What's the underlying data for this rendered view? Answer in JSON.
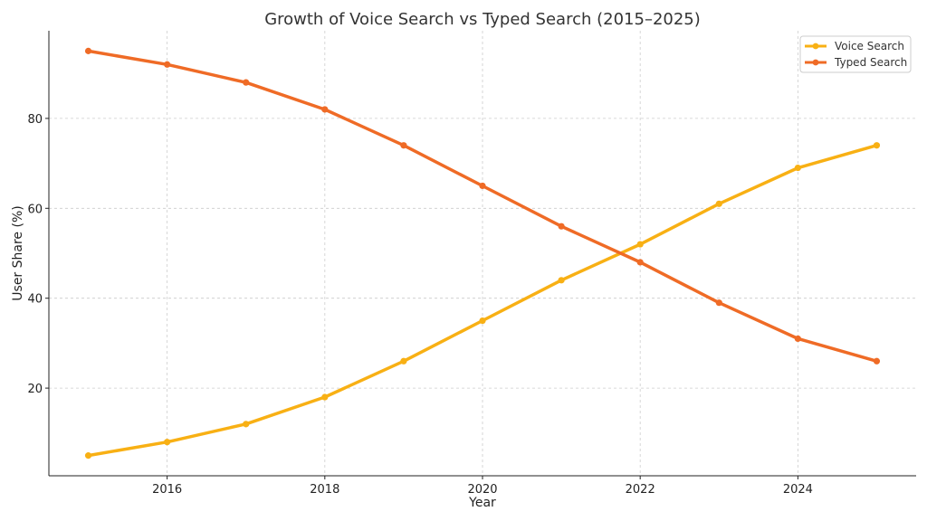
{
  "chart_data": {
    "type": "line",
    "title": "Growth of Voice Search vs Typed Search (2015–2025)",
    "xlabel": "Year",
    "ylabel": "User Share (%)",
    "x": [
      2015,
      2016,
      2017,
      2018,
      2019,
      2020,
      2021,
      2022,
      2023,
      2024,
      2025
    ],
    "xlim": [
      2014.5,
      2025.5
    ],
    "ylim": [
      0.5,
      99.5
    ],
    "xticks": [
      2016,
      2018,
      2020,
      2022,
      2024
    ],
    "yticks": [
      20,
      40,
      60,
      80
    ],
    "grid": true,
    "legend_position": "top-right",
    "series": [
      {
        "name": "Voice Search",
        "color": "#f8b014",
        "values": [
          5,
          8,
          12,
          18,
          26,
          35,
          44,
          52,
          61,
          69,
          74
        ]
      },
      {
        "name": "Typed Search",
        "color": "#ef6b26",
        "values": [
          95,
          92,
          88,
          82,
          74,
          65,
          56,
          48,
          39,
          31,
          26
        ]
      }
    ]
  }
}
